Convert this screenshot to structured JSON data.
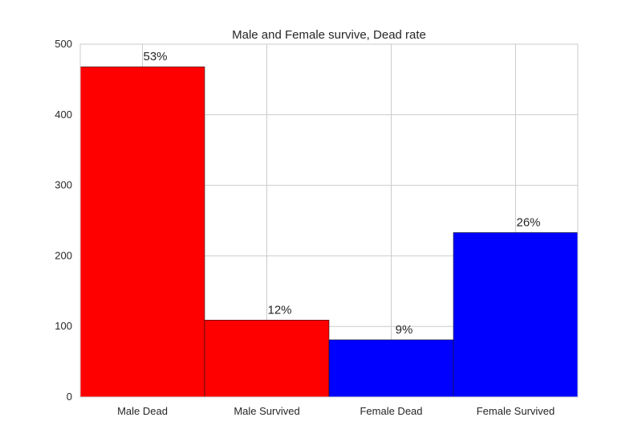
{
  "chart_data": {
    "type": "bar",
    "title": "Male and Female survive, Dead rate",
    "xlabel": "",
    "ylabel": "",
    "categories": [
      "Male Dead",
      "Male Survived",
      "Female Dead",
      "Female Survived"
    ],
    "values": [
      468,
      109,
      81,
      233
    ],
    "data_labels": [
      "53%",
      "12%",
      "9%",
      "26%"
    ],
    "bar_colors": [
      "#ff0000",
      "#ff0000",
      "#0000ff",
      "#0000ff"
    ],
    "ylim": [
      0,
      500
    ],
    "yticks": [
      0,
      100,
      200,
      300,
      400,
      500
    ],
    "grid": true,
    "legend": "none"
  }
}
